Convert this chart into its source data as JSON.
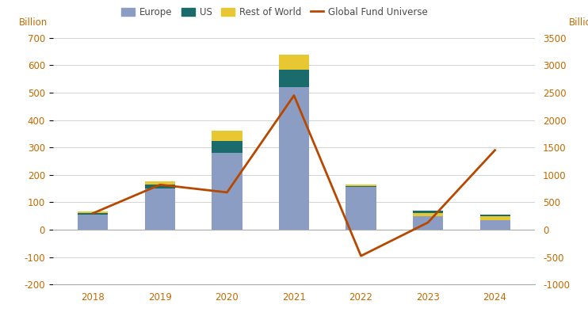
{
  "years": [
    2018,
    2019,
    2020,
    2021,
    2022,
    2023,
    2024
  ],
  "europe": [
    55,
    150,
    280,
    520,
    155,
    70,
    55
  ],
  "us": [
    5,
    15,
    45,
    65,
    5,
    -20,
    -20
  ],
  "rest_of_world": [
    5,
    10,
    35,
    55,
    5,
    10,
    15
  ],
  "global_fund_universe": [
    300,
    820,
    680,
    2450,
    -480,
    130,
    1450
  ],
  "europe_color": "#8b9dc3",
  "us_color": "#1a6b6b",
  "row_color": "#e8c832",
  "line_color": "#b84800",
  "background_color": "#ffffff",
  "grid_color": "#cccccc",
  "left_ylim": [
    -200,
    700
  ],
  "left_yticks": [
    -200,
    -100,
    0,
    100,
    200,
    300,
    400,
    500,
    600,
    700
  ],
  "right_ylim": [
    -1000,
    3500
  ],
  "right_yticks": [
    -1000,
    -500,
    0,
    500,
    1000,
    1500,
    2000,
    2500,
    3000,
    3500
  ],
  "left_ylabel": "Billion",
  "right_ylabel": "Billion",
  "legend_labels": [
    "Europe",
    "US",
    "Rest of World",
    "Global Fund Universe"
  ],
  "tick_fontsize": 8.5,
  "legend_fontsize": 8.5,
  "bar_width": 0.45,
  "label_color": "#4a4a4a",
  "axis_color": "#c46a00",
  "spine_color": "#aaaaaa"
}
